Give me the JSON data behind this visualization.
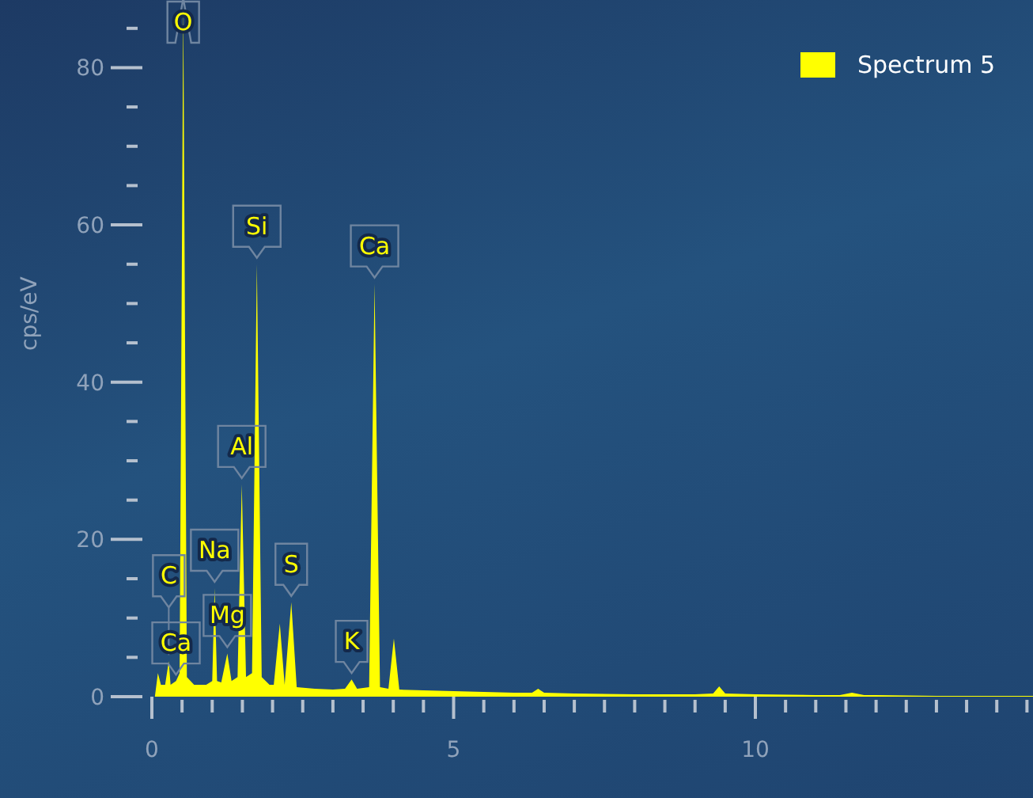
{
  "chart_data": {
    "type": "area",
    "ylabel": "cps/eV",
    "legend": "top right",
    "grid": false,
    "xlim": [
      0,
      14.6
    ],
    "ylim": [
      0,
      88
    ],
    "xticks": [
      0,
      {
        "value": 0.5,
        "label": null
      },
      {
        "value": 1,
        "label": null
      },
      {
        "value": 1.5,
        "label": null
      },
      {
        "value": 2,
        "label": null
      },
      {
        "value": 2.5,
        "label": null
      },
      {
        "value": 3,
        "label": null
      },
      {
        "value": 3.5,
        "label": null
      },
      {
        "value": 4,
        "label": null
      },
      {
        "value": 4.5,
        "label": null
      },
      5,
      {
        "value": 5.5,
        "label": null
      },
      {
        "value": 6,
        "label": null
      },
      {
        "value": 6.5,
        "label": null
      },
      {
        "value": 7,
        "label": null
      },
      {
        "value": 7.5,
        "label": null
      },
      {
        "value": 8,
        "label": null
      },
      {
        "value": 8.5,
        "label": null
      },
      {
        "value": 9,
        "label": null
      },
      {
        "value": 9.5,
        "label": null
      },
      10,
      {
        "value": 10.5,
        "label": null
      },
      {
        "value": 11,
        "label": null
      },
      {
        "value": 11.5,
        "label": null
      },
      {
        "value": 12,
        "label": null
      },
      {
        "value": 12.5,
        "label": null
      },
      {
        "value": 13,
        "label": null
      },
      {
        "value": 13.5,
        "label": null
      },
      {
        "value": 14,
        "label": null
      },
      {
        "value": 14.5,
        "label": null
      }
    ],
    "yticks": [
      0,
      {
        "value": 5,
        "label": null
      },
      {
        "value": 10,
        "label": null
      },
      {
        "value": 15,
        "label": null
      },
      20,
      {
        "value": 25,
        "label": null
      },
      {
        "value": 30,
        "label": null
      },
      {
        "value": 35,
        "label": null
      },
      40,
      {
        "value": 45,
        "label": null
      },
      {
        "value": 50,
        "label": null
      },
      {
        "value": 55,
        "label": null
      },
      60,
      {
        "value": 65,
        "label": null
      },
      {
        "value": 70,
        "label": null
      },
      {
        "value": 75,
        "label": null
      },
      80,
      {
        "value": 85,
        "label": null
      }
    ],
    "series": [
      {
        "name": "Spectrum 5",
        "color": "#ffff00",
        "x": [
          0.05,
          0.1,
          0.15,
          0.22,
          0.28,
          0.31,
          0.4,
          0.46,
          0.52,
          0.58,
          0.7,
          0.9,
          1.0,
          1.04,
          1.08,
          1.15,
          1.25,
          1.32,
          1.42,
          1.49,
          1.56,
          1.66,
          1.74,
          1.82,
          1.95,
          2.02,
          2.12,
          2.2,
          2.31,
          2.4,
          2.7,
          3.0,
          3.2,
          3.31,
          3.4,
          3.6,
          3.69,
          3.78,
          3.92,
          4.01,
          4.1,
          4.5,
          5,
          6,
          6.3,
          6.4,
          6.5,
          7,
          8,
          9,
          9.3,
          9.4,
          9.5,
          10,
          11,
          11.4,
          11.6,
          11.8,
          12,
          13,
          14.6
        ],
        "values": [
          0,
          3,
          1.5,
          1.5,
          4.5,
          1.5,
          2,
          3,
          88,
          2.5,
          1.5,
          1.5,
          2,
          13.8,
          2,
          1.8,
          5.5,
          2,
          2.5,
          27,
          2.5,
          3,
          55,
          2.5,
          1.5,
          1.5,
          9.3,
          1.5,
          12,
          1.2,
          1,
          0.9,
          1,
          2.2,
          1,
          1.2,
          52.5,
          1.2,
          1,
          7.4,
          0.9,
          0.8,
          0.7,
          0.5,
          0.5,
          1,
          0.5,
          0.4,
          0.3,
          0.3,
          0.4,
          1.3,
          0.4,
          0.3,
          0.2,
          0.2,
          0.5,
          0.2,
          0.2,
          0.1,
          0.1
        ]
      }
    ],
    "annotations": [
      {
        "text": "O",
        "x": 0.52,
        "y": 88
      },
      {
        "text": "Si",
        "x": 1.74,
        "y": 55
      },
      {
        "text": "Ca",
        "x": 3.69,
        "y": 52.5
      },
      {
        "text": "Al",
        "x": 1.49,
        "y": 27
      },
      {
        "text": "Na",
        "x": 1.04,
        "y": 13.8
      },
      {
        "text": "S",
        "x": 2.31,
        "y": 12
      },
      {
        "text": "C",
        "x": 0.28,
        "y": 4.5
      },
      {
        "text": "Mg",
        "x": 1.25,
        "y": 5.5
      },
      {
        "text": "Ca",
        "x": 0.4,
        "y": 2
      },
      {
        "text": "K",
        "x": 3.31,
        "y": 2.2
      }
    ]
  }
}
